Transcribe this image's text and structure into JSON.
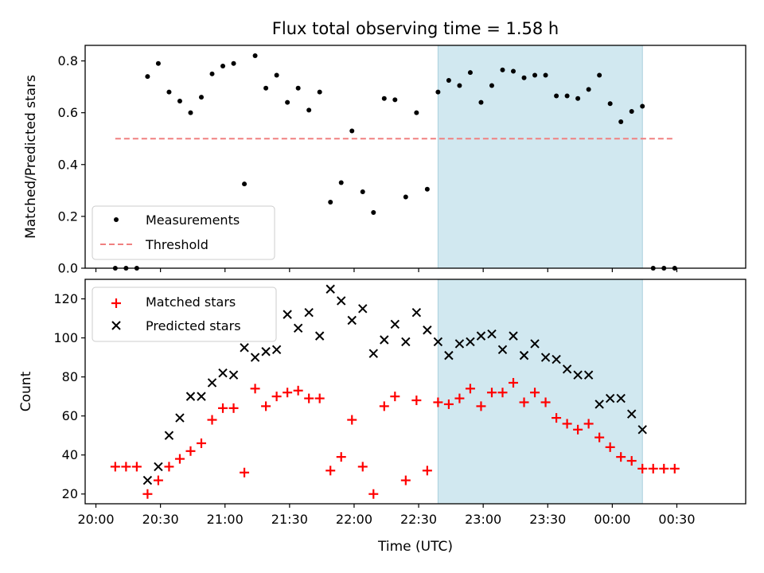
{
  "chart_data": [
    {
      "type": "scatter",
      "title": "Flux total observing time = 1.58 h",
      "xlabel": "",
      "ylabel": "Matched/Predicted stars",
      "ylim": [
        0,
        0.86
      ],
      "yticks": [
        "0.0",
        "0.2",
        "0.4",
        "0.6",
        "0.8"
      ],
      "ytick_values": [
        0,
        0.2,
        0.4,
        0.6,
        0.8
      ],
      "x_unit": "minutes after 20:00 UTC",
      "xlim": [
        -5,
        302
      ],
      "shaded_region": {
        "x_start": 159,
        "x_end": 254,
        "color": "#d1e8f0"
      },
      "series": [
        {
          "name": "Measurements",
          "marker": "dot",
          "color": "#000000",
          "x": [
            9,
            14,
            19,
            24,
            29,
            34,
            39,
            44,
            49,
            54,
            59,
            64,
            69,
            74,
            79,
            84,
            89,
            94,
            99,
            104,
            109,
            114,
            119,
            124,
            129,
            134,
            139,
            144,
            149,
            154,
            159,
            164,
            169,
            174,
            179,
            184,
            189,
            194,
            199,
            204,
            209,
            214,
            219,
            224,
            229,
            234,
            239,
            244,
            249,
            254,
            259,
            264,
            269
          ],
          "y": [
            0,
            0,
            0,
            0.74,
            0.79,
            0.68,
            0.645,
            0.6,
            0.66,
            0.75,
            0.78,
            0.79,
            0.325,
            0.82,
            0.695,
            0.745,
            0.64,
            0.695,
            0.61,
            0.68,
            0.255,
            0.33,
            0.53,
            0.295,
            0.215,
            0.655,
            0.65,
            0.275,
            0.6,
            0.305,
            0.68,
            0.725,
            0.705,
            0.755,
            0.64,
            0.705,
            0.765,
            0.76,
            0.735,
            0.745,
            0.745,
            0.665,
            0.665,
            0.655,
            0.69,
            0.745,
            0.635,
            0.565,
            0.605,
            0.625,
            0,
            0,
            0
          ]
        },
        {
          "name": "Threshold",
          "style": "dashed",
          "color": "#f08080",
          "x": [
            9,
            269
          ],
          "y": [
            0.5,
            0.5
          ]
        }
      ],
      "legend": {
        "position": "lower-left"
      }
    },
    {
      "type": "scatter",
      "title": "",
      "xlabel": "Time (UTC)",
      "ylabel": "Count",
      "ylim": [
        15,
        130
      ],
      "yticks": [
        "20",
        "40",
        "60",
        "80",
        "100",
        "120"
      ],
      "ytick_values": [
        20,
        40,
        60,
        80,
        100,
        120
      ],
      "x_unit": "minutes after 20:00 UTC",
      "xlim": [
        -5,
        302
      ],
      "xticks": [
        "20:00",
        "20:30",
        "21:00",
        "21:30",
        "22:00",
        "22:30",
        "23:00",
        "23:30",
        "00:00",
        "00:30"
      ],
      "xtick_values": [
        0,
        30,
        60,
        90,
        120,
        150,
        180,
        210,
        240,
        270
      ],
      "shaded_region": {
        "x_start": 159,
        "x_end": 254,
        "color": "#d1e8f0"
      },
      "series": [
        {
          "name": "Matched stars",
          "marker": "plus",
          "color": "#ff0000",
          "x": [
            9,
            14,
            19,
            24,
            29,
            34,
            39,
            44,
            49,
            54,
            59,
            64,
            69,
            74,
            79,
            84,
            89,
            94,
            99,
            104,
            109,
            114,
            119,
            124,
            129,
            134,
            139,
            144,
            149,
            154,
            159,
            164,
            169,
            174,
            179,
            184,
            189,
            194,
            199,
            204,
            209,
            214,
            219,
            224,
            229,
            234,
            239,
            244,
            249,
            254,
            259,
            264,
            269
          ],
          "y": [
            34,
            34,
            34,
            20,
            27,
            34,
            38,
            42,
            46,
            58,
            64,
            64,
            31,
            74,
            65,
            70,
            72,
            73,
            69,
            69,
            32,
            39,
            58,
            34,
            20,
            65,
            70,
            27,
            68,
            32,
            67,
            66,
            69,
            74,
            65,
            72,
            72,
            77,
            67,
            72,
            67,
            59,
            56,
            53,
            56,
            49,
            44,
            39,
            37,
            33,
            33,
            33,
            33
          ]
        },
        {
          "name": "Predicted stars",
          "marker": "x",
          "color": "#000000",
          "x": [
            24,
            29,
            34,
            39,
            44,
            49,
            54,
            59,
            64,
            69,
            74,
            79,
            84,
            89,
            94,
            99,
            104,
            109,
            114,
            119,
            124,
            129,
            134,
            139,
            144,
            149,
            154,
            159,
            164,
            169,
            174,
            179,
            184,
            189,
            194,
            199,
            204,
            209,
            214,
            219,
            224,
            229,
            234,
            239,
            244,
            249,
            254
          ],
          "y": [
            27,
            34,
            50,
            59,
            70,
            70,
            77,
            82,
            81,
            95,
            90,
            93,
            94,
            112,
            105,
            113,
            101,
            125,
            119,
            109,
            115,
            92,
            99,
            107,
            98,
            113,
            104,
            98,
            91,
            97,
            98,
            101,
            102,
            94,
            101,
            91,
            97,
            90,
            89,
            84,
            81,
            81,
            66,
            69,
            69,
            61,
            53
          ]
        }
      ],
      "legend": {
        "position": "top-left"
      }
    }
  ]
}
